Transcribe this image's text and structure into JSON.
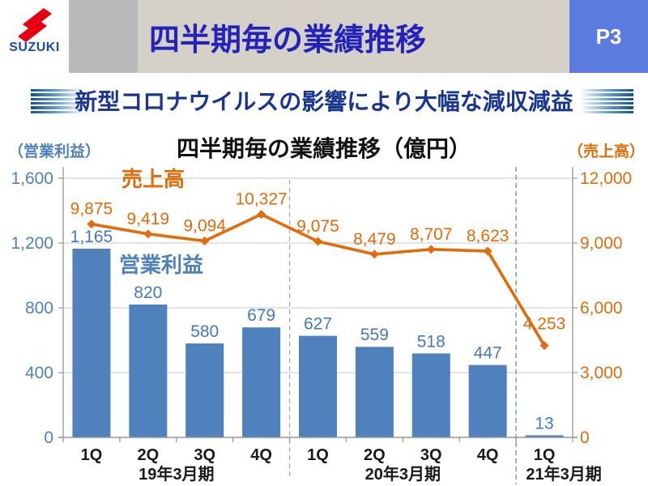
{
  "header": {
    "logo_text": "SUZUKI",
    "title": "四半期毎の業績推移",
    "page_badge": "P3"
  },
  "subtitle": "新型コロナウイルスの影響により大幅な減収減益",
  "chart": {
    "title": "四半期毎の業績推移（億円）",
    "left_axis_title": "（営業利益）",
    "right_axis_title": "（売上高）",
    "line_series_label": "売上高",
    "bar_series_label": "営業利益",
    "unit": "億円"
  },
  "chart_data": {
    "type": "combo-bar-line",
    "title": "四半期毎の業績推移（億円）",
    "categories": [
      "1Q",
      "2Q",
      "3Q",
      "4Q",
      "1Q",
      "2Q",
      "3Q",
      "4Q",
      "1Q"
    ],
    "group_labels": [
      "19年3月期",
      "20年3月期",
      "21年3月期"
    ],
    "group_sizes": [
      4,
      4,
      1
    ],
    "series": [
      {
        "name": "営業利益",
        "type": "bar",
        "axis": "left",
        "values": [
          1165,
          820,
          580,
          679,
          627,
          559,
          518,
          447,
          13
        ],
        "labels": [
          "1,165",
          "820",
          "580",
          "679",
          "627",
          "559",
          "518",
          "447",
          "13"
        ]
      },
      {
        "name": "売上高",
        "type": "line",
        "axis": "right",
        "values": [
          9875,
          9419,
          9094,
          10327,
          9075,
          8479,
          8707,
          8623,
          4253
        ],
        "labels": [
          "9,875",
          "9,419",
          "9,094",
          "10,327",
          "9,075",
          "8,479",
          "8,707",
          "8,623",
          "4,253"
        ]
      }
    ],
    "left_axis": {
      "title": "（営業利益）",
      "ticks": [
        "0",
        "400",
        "800",
        "1,200",
        "1,600"
      ],
      "range": [
        0,
        1600
      ]
    },
    "right_axis": {
      "title": "（売上高）",
      "ticks": [
        "0",
        "3,000",
        "6,000",
        "9,000",
        "12,000"
      ],
      "range": [
        0,
        12000
      ]
    },
    "grid": true,
    "colors": {
      "bar": "#4f81bd",
      "bar_label": "#4677c0",
      "line": "#e26b0a",
      "line_label": "#e26b0a",
      "grid": "#c8c8c8",
      "axis": "#959595",
      "separator_1": "#a8a8a8",
      "separator_2": "#5b8ac4",
      "category_text": "#1a1a1a"
    }
  }
}
